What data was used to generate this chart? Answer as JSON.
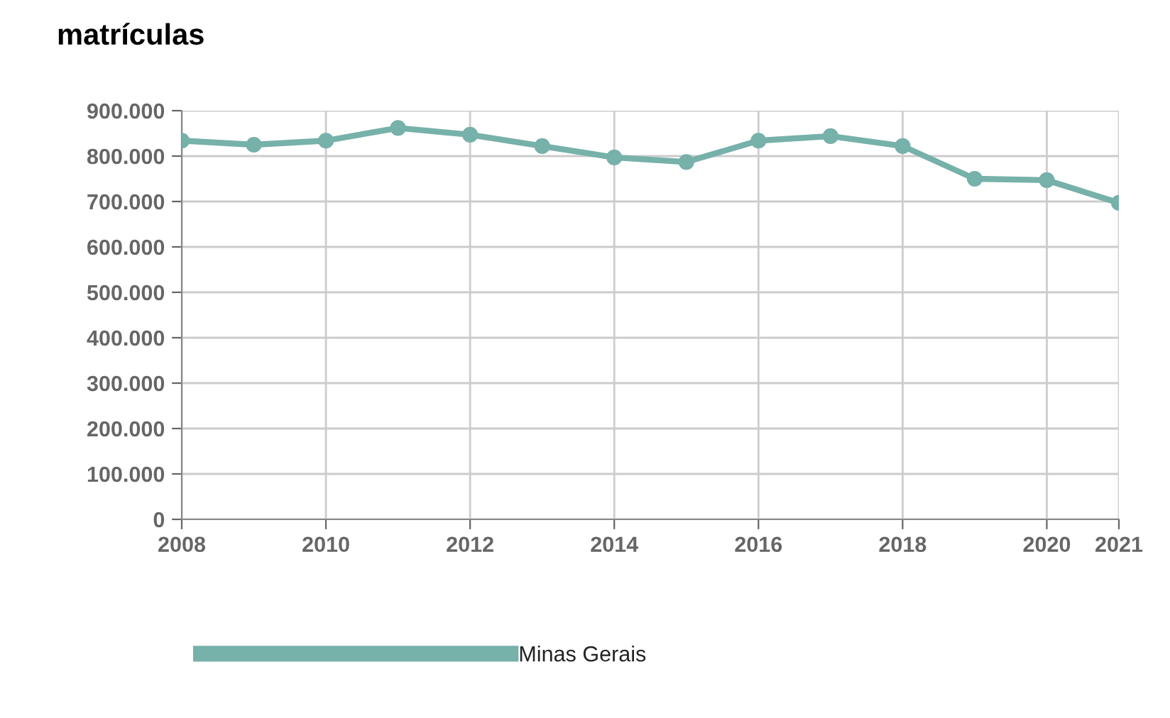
{
  "chart_data": {
    "type": "line",
    "title": "matrículas",
    "x": [
      2008,
      2009,
      2010,
      2011,
      2012,
      2013,
      2014,
      2015,
      2016,
      2017,
      2018,
      2019,
      2020,
      2021
    ],
    "series": [
      {
        "name": "Minas Gerais",
        "color": "#76b1aa",
        "values": [
          834000,
          825000,
          834000,
          862000,
          847000,
          822000,
          797000,
          787000,
          834000,
          844000,
          822000,
          750000,
          747000,
          697000
        ]
      }
    ],
    "xlim": [
      2008,
      2021
    ],
    "xticks": [
      2008,
      2010,
      2012,
      2014,
      2016,
      2018,
      2020,
      2021
    ],
    "ylim": [
      0,
      900000
    ],
    "yticks": [
      0,
      {
        "value": 100000,
        "label": "100.000"
      },
      {
        "value": 200000,
        "label": "200.000"
      },
      {
        "value": 300000,
        "label": "300.000"
      },
      {
        "value": 400000,
        "label": "400.000"
      },
      {
        "value": 500000,
        "label": "500.000"
      },
      {
        "value": 600000,
        "label": "600.000"
      },
      {
        "value": 700000,
        "label": "700.000"
      },
      {
        "value": 800000,
        "label": "800.000"
      },
      {
        "value": 900000,
        "label": "900.000"
      }
    ],
    "grid": true,
    "legend": "bottom left",
    "marker": "circle",
    "line_style": "solid"
  }
}
